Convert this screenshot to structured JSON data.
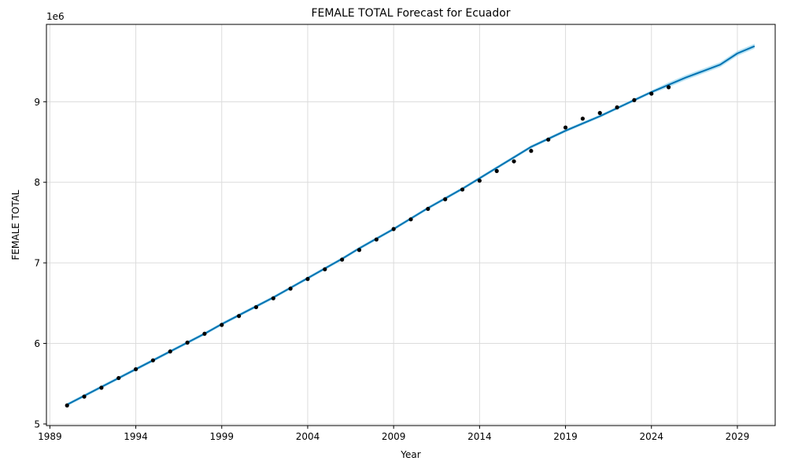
{
  "chart_data": {
    "type": "line",
    "title": "FEMALE TOTAL Forecast for Ecuador",
    "xlabel": "Year",
    "ylabel": "FEMALE TOTAL",
    "y_scale_label": "1e6",
    "xlim": [
      1988.8,
      2031.2
    ],
    "ylim": [
      4.98,
      9.96
    ],
    "x_ticks": [
      1989,
      1994,
      1999,
      2004,
      2009,
      2014,
      2019,
      2024,
      2029
    ],
    "y_ticks": [
      5,
      6,
      7,
      8,
      9
    ],
    "grid": true,
    "colors": {
      "forecast_line": "#0072B2",
      "interval_band": "#87CEEB",
      "observed_points": "#000000",
      "grid": "#dcdcdc"
    },
    "series": [
      {
        "kind": "forecast",
        "x": [
          1990,
          1991,
          1992,
          1993,
          1994,
          1995,
          1996,
          1997,
          1998,
          1999,
          2000,
          2001,
          2002,
          2003,
          2004,
          2005,
          2006,
          2007,
          2008,
          2009,
          2010,
          2011,
          2012,
          2013,
          2014,
          2015,
          2016,
          2017,
          2018,
          2019,
          2020,
          2021,
          2022,
          2023,
          2024,
          2025,
          2026,
          2027,
          2028,
          2029,
          2030
        ],
        "y": [
          5.24,
          5.35,
          5.46,
          5.57,
          5.68,
          5.79,
          5.9,
          6.01,
          6.12,
          6.24,
          6.35,
          6.46,
          6.57,
          6.69,
          6.81,
          6.93,
          7.05,
          7.18,
          7.3,
          7.42,
          7.55,
          7.68,
          7.8,
          7.92,
          8.05,
          8.18,
          8.31,
          8.44,
          8.54,
          8.64,
          8.73,
          8.82,
          8.92,
          9.02,
          9.12,
          9.21,
          9.3,
          9.38,
          9.46,
          9.6,
          9.69
        ],
        "lower": [
          5.22,
          5.33,
          5.44,
          5.55,
          5.66,
          5.77,
          5.88,
          5.99,
          6.1,
          6.22,
          6.33,
          6.44,
          6.55,
          6.67,
          6.79,
          6.91,
          7.03,
          7.16,
          7.28,
          7.4,
          7.53,
          7.66,
          7.78,
          7.9,
          8.03,
          8.16,
          8.29,
          8.42,
          8.52,
          8.62,
          8.71,
          8.8,
          8.9,
          9.0,
          9.1,
          9.18,
          9.27,
          9.35,
          9.43,
          9.57,
          9.66
        ],
        "upper": [
          5.26,
          5.37,
          5.48,
          5.59,
          5.7,
          5.81,
          5.92,
          6.03,
          6.14,
          6.26,
          6.37,
          6.48,
          6.59,
          6.71,
          6.83,
          6.95,
          7.07,
          7.2,
          7.32,
          7.44,
          7.57,
          7.7,
          7.82,
          7.94,
          8.07,
          8.2,
          8.33,
          8.46,
          8.56,
          8.66,
          8.75,
          8.84,
          8.94,
          9.04,
          9.14,
          9.24,
          9.33,
          9.41,
          9.49,
          9.63,
          9.72
        ]
      },
      {
        "kind": "observed",
        "x": [
          1990,
          1991,
          1992,
          1993,
          1994,
          1995,
          1996,
          1997,
          1998,
          1999,
          2000,
          2001,
          2002,
          2003,
          2004,
          2005,
          2006,
          2007,
          2008,
          2009,
          2010,
          2011,
          2012,
          2013,
          2014,
          2015,
          2016,
          2017,
          2018,
          2019,
          2020,
          2021,
          2022,
          2023,
          2024,
          2025
        ],
        "y": [
          5.23,
          5.34,
          5.45,
          5.57,
          5.68,
          5.79,
          5.9,
          6.01,
          6.12,
          6.23,
          6.34,
          6.45,
          6.56,
          6.68,
          6.8,
          6.92,
          7.04,
          7.16,
          7.29,
          7.42,
          7.54,
          7.67,
          7.79,
          7.91,
          8.02,
          8.14,
          8.26,
          8.39,
          8.53,
          8.68,
          8.79,
          8.86,
          8.93,
          9.02,
          9.1,
          9.18
        ]
      }
    ]
  }
}
